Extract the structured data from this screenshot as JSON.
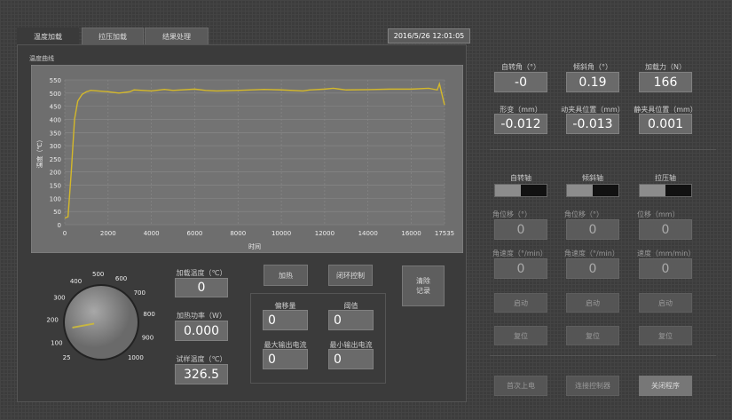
{
  "tabs": [
    {
      "label": "温度加载",
      "active": true
    },
    {
      "label": "拉压加载"
    },
    {
      "label": "结果处理"
    }
  ],
  "datetime": "2016/5/26 12:01:05",
  "chart_data": {
    "type": "line",
    "title": "温度曲线",
    "xlabel": "时间",
    "ylabel": "温度（℃）",
    "xlim": [
      0,
      17535
    ],
    "ylim": [
      0,
      550
    ],
    "xticks": [
      "0",
      "2000",
      "4000",
      "6000",
      "8000",
      "10000",
      "12000",
      "14000",
      "16000",
      "17535"
    ],
    "yticks": [
      "0",
      "50",
      "100",
      "150",
      "200",
      "250",
      "300",
      "350",
      "400",
      "450",
      "500",
      "550"
    ],
    "grid": true,
    "line_color": "#d4b82a",
    "x": [
      0,
      150,
      300,
      450,
      600,
      800,
      1000,
      1200,
      2000,
      2500,
      3000,
      3200,
      4000,
      4600,
      5000,
      6000,
      6500,
      7000,
      8000,
      9200,
      10000,
      11000,
      11300,
      12000,
      12400,
      13000,
      14000,
      15000,
      16000,
      16800,
      17200,
      17300,
      17535
    ],
    "y": [
      25,
      30,
      200,
      400,
      470,
      495,
      505,
      510,
      505,
      500,
      505,
      512,
      508,
      514,
      510,
      515,
      510,
      508,
      510,
      514,
      512,
      508,
      512,
      515,
      518,
      512,
      513,
      515,
      515,
      518,
      512,
      535,
      455
    ]
  },
  "dial": {
    "ticks": [
      "25",
      "100",
      "200",
      "300",
      "400",
      "500",
      "600",
      "700",
      "800",
      "900",
      "1000"
    ],
    "value": 150,
    "min": 25,
    "max": 1000
  },
  "heating": {
    "load_temp": {
      "label": "加载温度（℃）",
      "value": "0"
    },
    "power": {
      "label": "加热功率（W）",
      "value": "0.000"
    },
    "sample_temp": {
      "label": "试样温度（℃）",
      "value": "326.5"
    }
  },
  "buttons": {
    "heat": "加热",
    "closed_loop": "闭环控制",
    "clear": "清除记录"
  },
  "pid": {
    "offset": {
      "label": "偏移量",
      "value": "0"
    },
    "threshold": {
      "label": "阈值",
      "value": "0"
    },
    "max_current": {
      "label": "最大输出电流",
      "value": "0"
    },
    "min_current": {
      "label": "最小输出电流",
      "value": "0"
    }
  },
  "readouts": [
    {
      "label": "自转角（°）",
      "value": "-0"
    },
    {
      "label": "倾斜角（°）",
      "value": "0.19"
    },
    {
      "label": "加载力（N）",
      "value": "166"
    },
    {
      "label": "形变（mm）",
      "value": "-0.012"
    },
    {
      "label": "动夹具位置（mm）",
      "value": "-0.013"
    },
    {
      "label": "静夹具位置（mm）",
      "value": "0.001"
    }
  ],
  "axes": [
    {
      "name": "自转轴",
      "disp_label": "角位移（°）",
      "disp": "0",
      "speed_label": "角速度（°/min）",
      "speed": "0",
      "start": "启动",
      "reset": "复位"
    },
    {
      "name": "倾斜轴",
      "disp_label": "角位移（°）",
      "disp": "0",
      "speed_label": "角速度（°/min）",
      "speed": "0",
      "start": "启动",
      "reset": "复位"
    },
    {
      "name": "拉压轴",
      "disp_label": "位移（mm）",
      "disp": "0",
      "speed_label": "速度（mm/min）",
      "speed": "0",
      "start": "启动",
      "reset": "复位"
    }
  ],
  "footer": {
    "power_on": "首次上电",
    "connect": "连接控制器",
    "close": "关闭程序"
  }
}
